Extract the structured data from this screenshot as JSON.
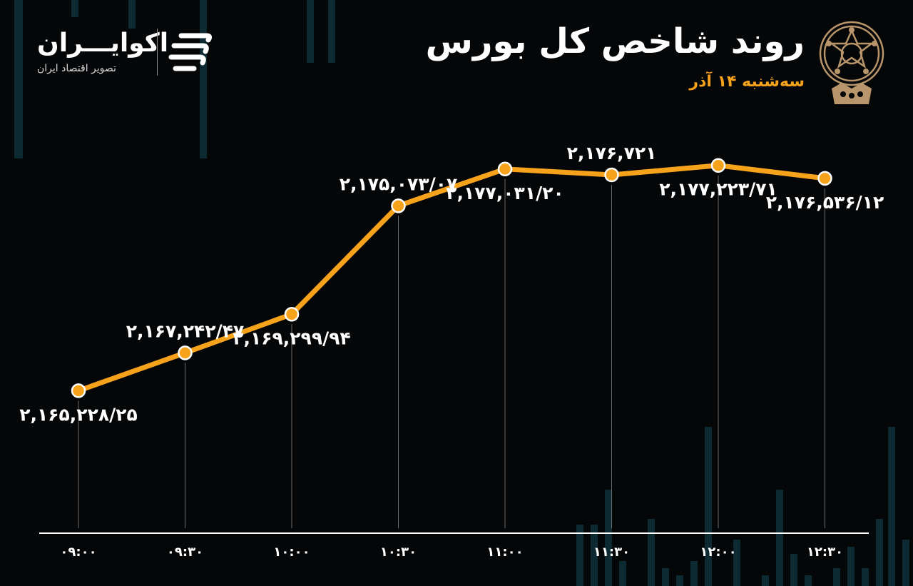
{
  "header": {
    "title": "روند شاخص کل بورس",
    "subtitle": "سه‌شنبه ۱۴ آذر"
  },
  "brand": {
    "name": "اکوایـــران",
    "tagline": "تصویر اقتصاد ایران"
  },
  "emblem": {
    "icon": "stock-exchange-emblem-icon"
  },
  "colors": {
    "background": "#050607",
    "line": "#f7a21b",
    "marker": "#f7a21b",
    "text": "#ffffff",
    "accent": "#f7a21b",
    "decor": "#0d2a33"
  },
  "chart_data": {
    "type": "line",
    "title": "",
    "xlabel": "",
    "ylabel": "",
    "categories": [
      "۰۹:۰۰",
      "۰۹:۳۰",
      "۱۰:۰۰",
      "۱۰:۳۰",
      "۱۱:۰۰",
      "۱۱:۳۰",
      "۱۲:۰۰",
      "۱۲:۳۰"
    ],
    "values": [
      2165228.25,
      2167242.47,
      2169299.94,
      2175073.07,
      2177031.2,
      2176721,
      2177223.71,
      2176536.12
    ],
    "labels": [
      "۲,۱۶۵,۲۲۸/۲۵",
      "۲,۱۶۷,۲۴۲/۴۷",
      "۲,۱۶۹,۲۹۹/۹۴",
      "۲,۱۷۵,۰۷۳/۰۷",
      "۲,۱۷۷,۰۳۱/۲۰",
      "۲,۱۷۶,۷۲۱",
      "۲,۱۷۷,۲۲۳/۷۱",
      "۲,۱۷۶,۵۳۶/۱۲"
    ],
    "label_position": [
      "below",
      "above",
      "below",
      "above",
      "below",
      "above",
      "below",
      "below"
    ],
    "ylim": [
      2160000,
      2179000
    ],
    "grid": false,
    "legend": "none"
  }
}
